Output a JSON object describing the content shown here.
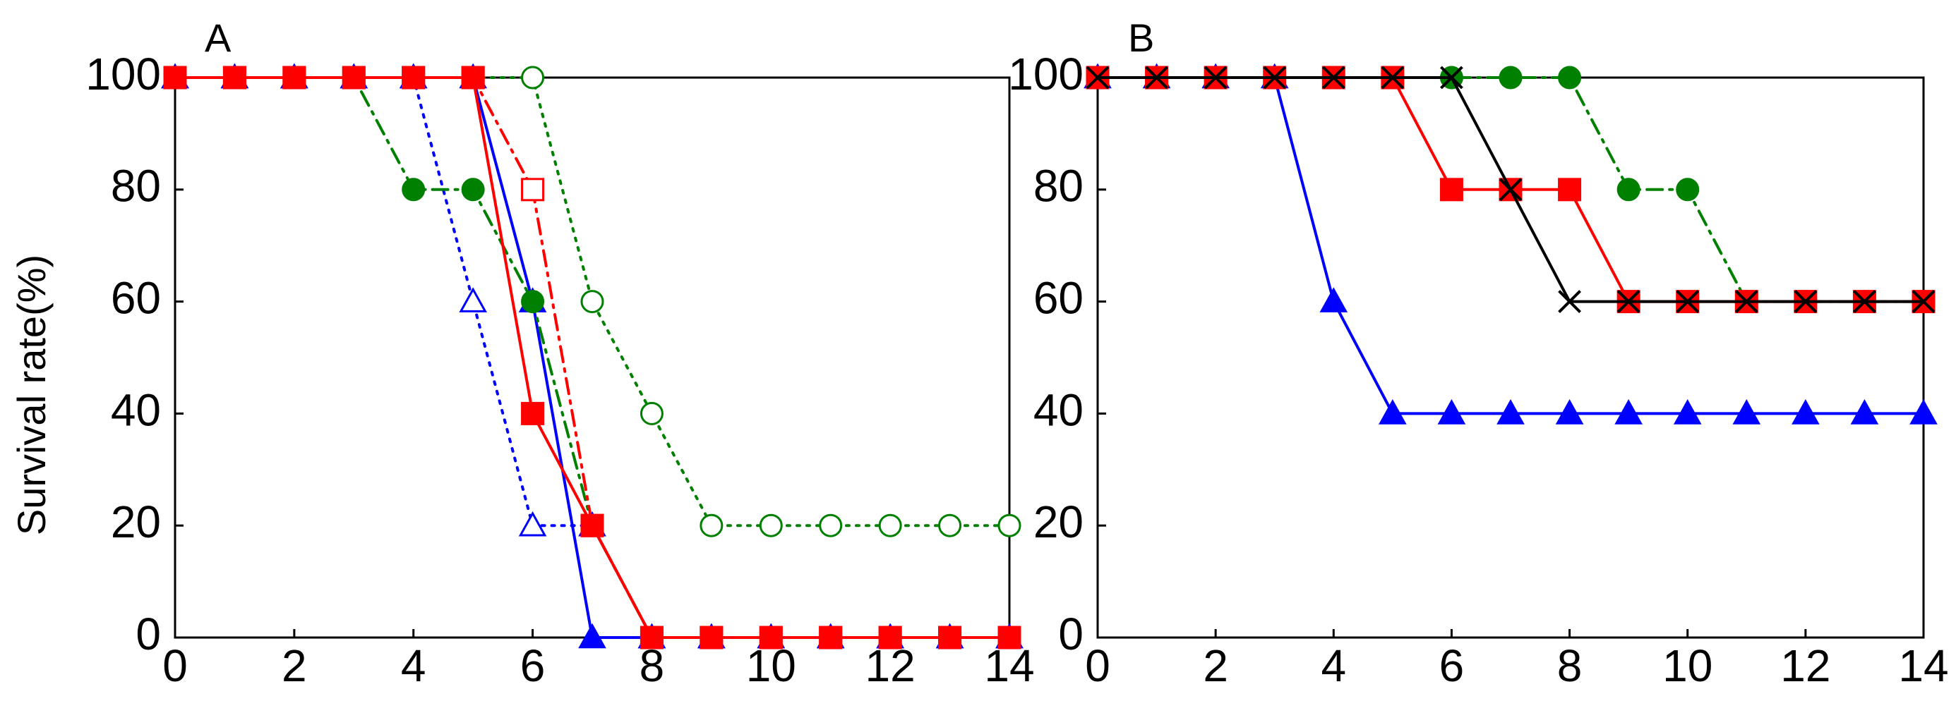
{
  "ylabel": "Survival rate(%)",
  "chart_data": [
    {
      "type": "line",
      "panel_label": "A",
      "xlim": [
        0,
        14
      ],
      "ylim": [
        0,
        100
      ],
      "x_ticks": [
        "0",
        "2",
        "4",
        "6",
        "8",
        "10",
        "12",
        "14"
      ],
      "y_ticks": [
        "0",
        "20",
        "40",
        "60",
        "80",
        "100"
      ],
      "series": [
        {
          "color": "#0000ff",
          "line": "dotted",
          "marker": "triangle-open",
          "x": [
            0,
            1,
            2,
            3,
            4,
            5,
            6,
            7,
            8,
            9,
            10,
            11,
            12,
            13,
            14
          ],
          "y": [
            100,
            100,
            100,
            100,
            100,
            60,
            20,
            20,
            0,
            0,
            0,
            0,
            0,
            0,
            0
          ]
        },
        {
          "color": "#0000ff",
          "line": "solid",
          "marker": "triangle-filled",
          "x": [
            0,
            1,
            2,
            3,
            4,
            5,
            6,
            7,
            8,
            9,
            10,
            11,
            12,
            13,
            14
          ],
          "y": [
            100,
            100,
            100,
            100,
            100,
            100,
            60,
            0,
            0,
            0,
            0,
            0,
            0,
            0,
            0
          ]
        },
        {
          "color": "#008000",
          "line": "dotted",
          "marker": "circle-open",
          "x": [
            0,
            1,
            2,
            3,
            4,
            5,
            6,
            7,
            8,
            9,
            10,
            11,
            12,
            13,
            14
          ],
          "y": [
            100,
            100,
            100,
            100,
            100,
            100,
            100,
            60,
            40,
            20,
            20,
            20,
            20,
            20,
            20
          ]
        },
        {
          "color": "#008000",
          "line": "dashdot",
          "marker": "circle-filled",
          "x": [
            0,
            1,
            2,
            3,
            4,
            5,
            6,
            7,
            8,
            9,
            10,
            11,
            12,
            13,
            14
          ],
          "y": [
            100,
            100,
            100,
            100,
            80,
            80,
            60,
            20,
            0,
            0,
            0,
            0,
            0,
            0,
            0
          ]
        },
        {
          "color": "#ff0000",
          "line": "dashdot",
          "marker": "square-open",
          "x": [
            0,
            1,
            2,
            3,
            4,
            5,
            6,
            7,
            8,
            9,
            10,
            11,
            12,
            13,
            14
          ],
          "y": [
            100,
            100,
            100,
            100,
            100,
            100,
            80,
            20,
            0,
            0,
            0,
            0,
            0,
            0,
            0
          ]
        },
        {
          "color": "#ff0000",
          "line": "solid",
          "marker": "square-filled",
          "x": [
            0,
            1,
            2,
            3,
            4,
            5,
            6,
            7,
            8,
            9,
            10,
            11,
            12,
            13,
            14
          ],
          "y": [
            100,
            100,
            100,
            100,
            100,
            100,
            40,
            20,
            0,
            0,
            0,
            0,
            0,
            0,
            0
          ]
        }
      ]
    },
    {
      "type": "line",
      "panel_label": "B",
      "xlim": [
        0,
        14
      ],
      "ylim": [
        0,
        100
      ],
      "x_ticks": [
        "0",
        "2",
        "4",
        "6",
        "8",
        "10",
        "12",
        "14"
      ],
      "y_ticks": [
        "0",
        "20",
        "40",
        "60",
        "80",
        "100"
      ],
      "series": [
        {
          "color": "#0000ff",
          "line": "solid",
          "marker": "triangle-filled",
          "x": [
            0,
            1,
            2,
            3,
            4,
            5,
            6,
            7,
            8,
            9,
            10,
            11,
            12,
            13,
            14
          ],
          "y": [
            100,
            100,
            100,
            100,
            60,
            40,
            40,
            40,
            40,
            40,
            40,
            40,
            40,
            40,
            40
          ]
        },
        {
          "color": "#008000",
          "line": "dashdot",
          "marker": "circle-filled",
          "x": [
            0,
            1,
            2,
            3,
            4,
            5,
            6,
            7,
            8,
            9,
            10,
            11,
            12,
            13,
            14
          ],
          "y": [
            100,
            100,
            100,
            100,
            100,
            100,
            100,
            100,
            100,
            80,
            80,
            60,
            60,
            60,
            60
          ]
        },
        {
          "color": "#ff0000",
          "line": "solid",
          "marker": "square-filled",
          "x": [
            0,
            1,
            2,
            3,
            4,
            5,
            6,
            7,
            8,
            9,
            10,
            11,
            12,
            13,
            14
          ],
          "y": [
            100,
            100,
            100,
            100,
            100,
            100,
            80,
            80,
            80,
            60,
            60,
            60,
            60,
            60,
            60
          ]
        },
        {
          "color": "#000000",
          "line": "solid",
          "marker": "x",
          "x": [
            0,
            1,
            2,
            3,
            4,
            5,
            6,
            7,
            8,
            9,
            10,
            11,
            12,
            13,
            14
          ],
          "y": [
            100,
            100,
            100,
            100,
            100,
            100,
            100,
            80,
            60,
            60,
            60,
            60,
            60,
            60,
            60
          ]
        }
      ]
    }
  ]
}
